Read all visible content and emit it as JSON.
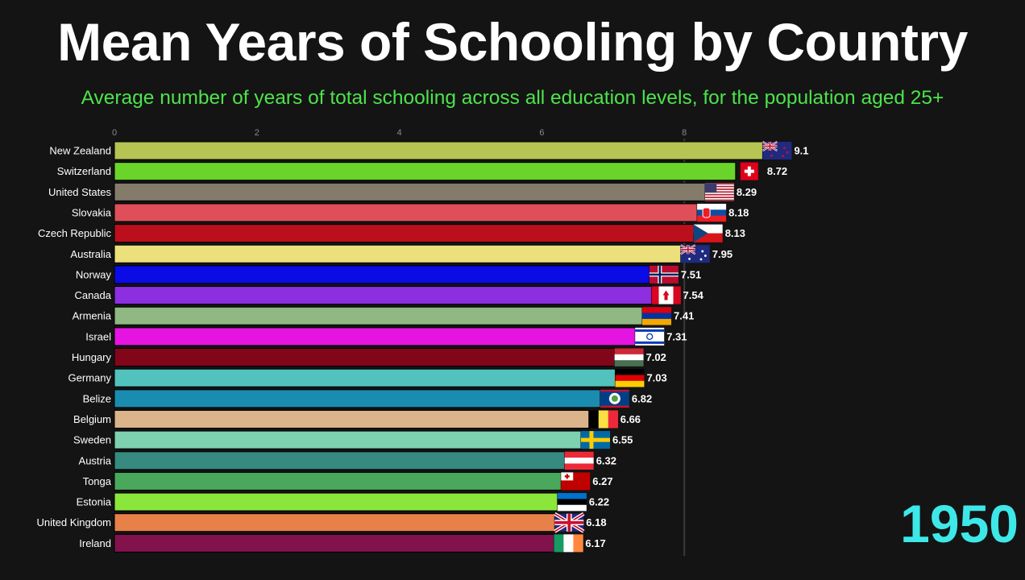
{
  "chart_data": {
    "type": "bar",
    "orientation": "horizontal",
    "title": "Mean Years of Schooling by Country",
    "subtitle": "Average number of years of total schooling across all education levels, for the population aged 25+",
    "year_label": "1950",
    "xlim": [
      0,
      9.6
    ],
    "x_ticks": [
      0,
      2,
      4,
      6,
      8
    ],
    "grid": "vertical gridline at 8",
    "colors": {
      "background": "#141414",
      "subtitle": "#4de34b",
      "year": "#3ee8e8"
    },
    "bars": [
      {
        "country": "New Zealand",
        "value": 9.1,
        "label": "9.1",
        "color": "#b5c452",
        "flag": "flag-nz"
      },
      {
        "country": "Switzerland",
        "value": 8.72,
        "label": "8.72",
        "color": "#6ad42a",
        "flag": "flag-ch"
      },
      {
        "country": "United States",
        "value": 8.29,
        "label": "8.29",
        "color": "#847b6a",
        "flag": "flag-us"
      },
      {
        "country": "Slovakia",
        "value": 8.18,
        "label": "8.18",
        "color": "#e04e5a",
        "flag": "flag-sk"
      },
      {
        "country": "Czech Republic",
        "value": 8.13,
        "label": "8.13",
        "color": "#bc0f1e",
        "flag": "flag-cz"
      },
      {
        "country": "Australia",
        "value": 7.95,
        "label": "7.95",
        "color": "#ece07c",
        "flag": "flag-au"
      },
      {
        "country": "Norway",
        "value": 7.51,
        "label": "7.51",
        "color": "#0b0be6",
        "flag": "flag-no"
      },
      {
        "country": "Canada",
        "value": 7.54,
        "label": "7.54",
        "color": "#8b2fe0",
        "flag": "flag-ca"
      },
      {
        "country": "Armenia",
        "value": 7.41,
        "label": "7.41",
        "color": "#8fb883",
        "flag": "flag-am"
      },
      {
        "country": "Israel",
        "value": 7.31,
        "label": "7.31",
        "color": "#e614e0",
        "flag": "flag-il"
      },
      {
        "country": "Hungary",
        "value": 7.02,
        "label": "7.02",
        "color": "#82061a",
        "flag": "flag-hu"
      },
      {
        "country": "Germany",
        "value": 7.03,
        "label": "7.03",
        "color": "#52c2bc",
        "flag": "flag-de"
      },
      {
        "country": "Belize",
        "value": 6.82,
        "label": "6.82",
        "color": "#1a8cb0",
        "flag": "flag-bz"
      },
      {
        "country": "Belgium",
        "value": 6.66,
        "label": "6.66",
        "color": "#dcb48c",
        "flag": "flag-be"
      },
      {
        "country": "Sweden",
        "value": 6.55,
        "label": "6.55",
        "color": "#7ed1b0",
        "flag": "flag-se"
      },
      {
        "country": "Austria",
        "value": 6.32,
        "label": "6.32",
        "color": "#368a80",
        "flag": "flag-at"
      },
      {
        "country": "Tonga",
        "value": 6.27,
        "label": "6.27",
        "color": "#4aa85c",
        "flag": "flag-to"
      },
      {
        "country": "Estonia",
        "value": 6.22,
        "label": "6.22",
        "color": "#8ae63a",
        "flag": "flag-ee"
      },
      {
        "country": "United Kingdom",
        "value": 6.18,
        "label": "6.18",
        "color": "#e8804a",
        "flag": "flag-gb"
      },
      {
        "country": "Ireland",
        "value": 6.17,
        "label": "6.17",
        "color": "#82124c",
        "flag": "flag-ie"
      }
    ]
  }
}
